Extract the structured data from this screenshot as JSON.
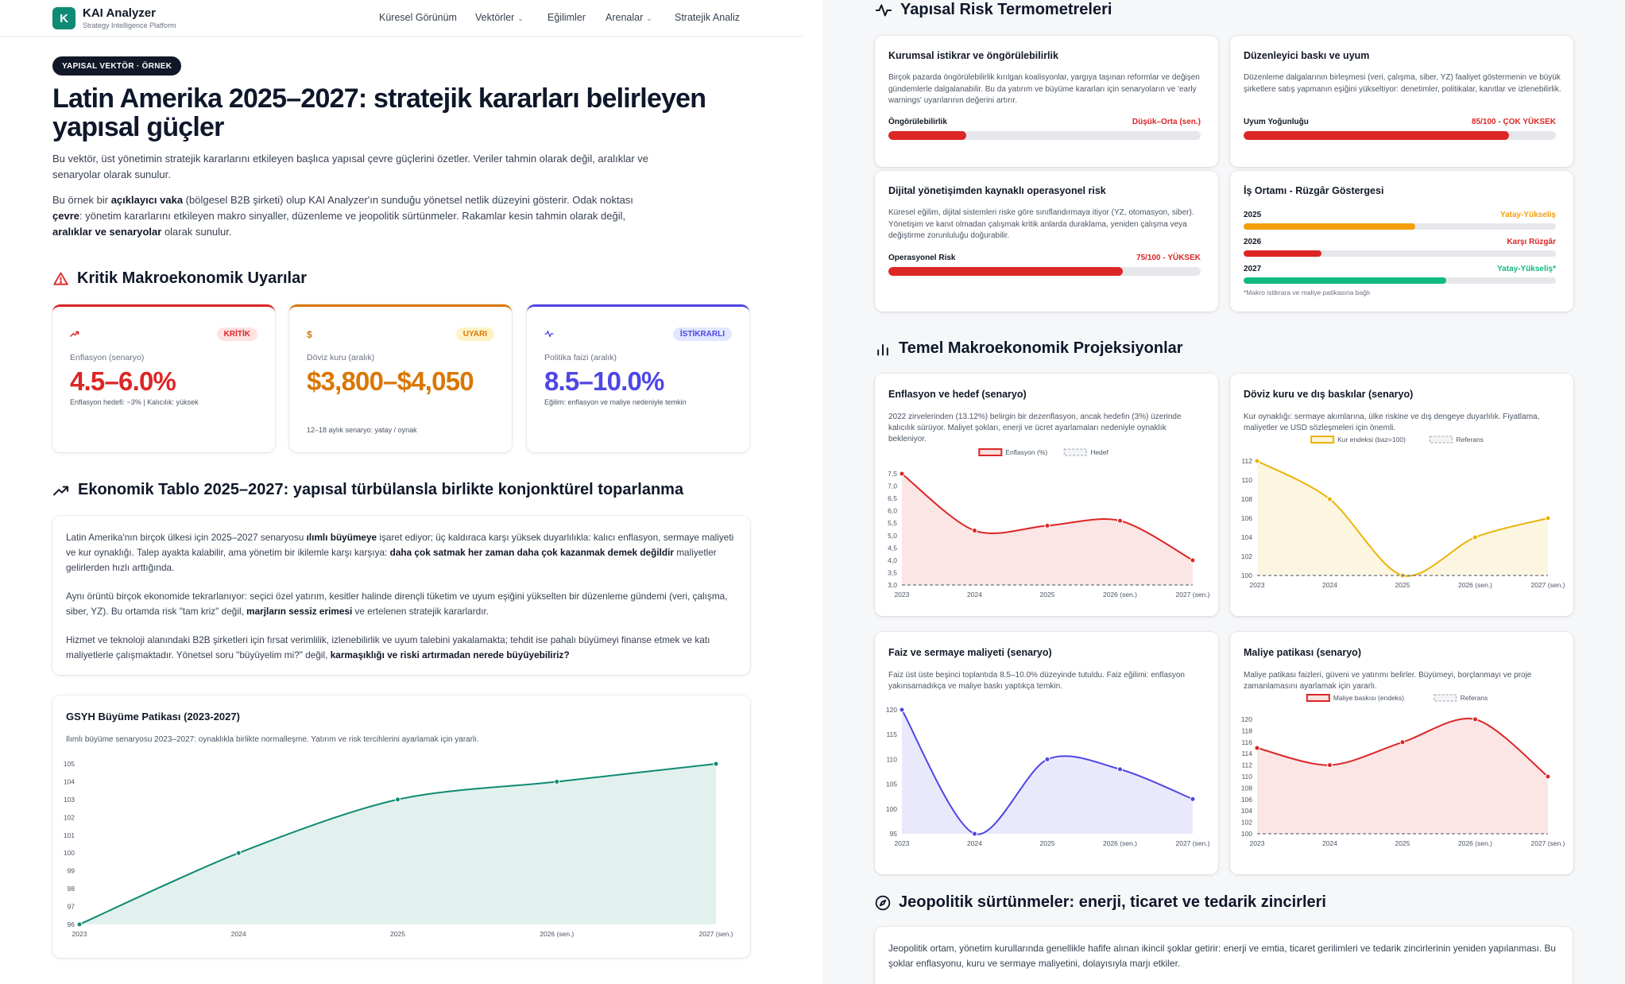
{
  "nav": {
    "logo_letter": "K",
    "brand": "KAI Analyzer",
    "brand_sub": "Strategy Intelligence Platform",
    "items": [
      {
        "label": "Küresel Görünüm",
        "dropdown": false
      },
      {
        "label": "Vektörler",
        "dropdown": true
      },
      {
        "label": "Eğilimler",
        "dropdown": false
      },
      {
        "label": "Arenalar",
        "dropdown": true
      },
      {
        "label": "Stratejik Analiz",
        "dropdown": false
      }
    ]
  },
  "hero": {
    "badge": "YAPISAL VEKTÖR · ÖRNEK",
    "title": "Latin Amerika 2025–2027: stratejik kararları belirleyen yapısal güçler",
    "intro1": "Bu vektör, üst yönetimin stratejik kararlarını etkileyen başlıca yapısal çevre güçlerini özetler. Veriler tahmin olarak değil, aralıklar ve senaryolar olarak sunulur.",
    "intro2_parts": [
      {
        "t": "Bu örnek bir ",
        "b": false
      },
      {
        "t": "açıklayıcı vaka",
        "b": true
      },
      {
        "t": " (bölgesel B2B şirketi) olup KAI Analyzer'ın sunduğu yönetsel netlik düzeyini gösterir. Odak noktası ",
        "b": false
      },
      {
        "t": "çevre",
        "b": true
      },
      {
        "t": ": yönetim kararlarını etkileyen makro sinyaller, düzenleme ve jeopolitik sürtünmeler. Rakamlar kesin tahmin olarak değil, ",
        "b": false
      },
      {
        "t": "aralıklar ve senaryolar",
        "b": true
      },
      {
        "t": " olarak sunulur.",
        "b": false
      }
    ]
  },
  "alerts": {
    "title": "Kritik Makroekonomik Uyarılar",
    "cards": [
      {
        "icon": "trend-up",
        "badge": "KRİTİK",
        "label": "Enflasyon (senaryo)",
        "value": "4.5–6.0%",
        "note": "Enflasyon hedefi: ~3% | Kalıcılık: yüksek",
        "color": "#dc2626",
        "badge_bg": "#fee2e2"
      },
      {
        "icon": "dollar",
        "badge": "UYARI",
        "label": "Döviz kuru (aralık)",
        "value": "$3,800–$4,050",
        "note": "12–18 aylık senaryo: yatay / oynak",
        "color": "#d97706",
        "badge_bg": "#fef3c7"
      },
      {
        "icon": "activity",
        "badge": "İSTİKRARLI",
        "label": "Politika faizi (aralık)",
        "value": "8.5–10.0%",
        "note": "Eğilim: enflasyon ve maliye nedeniyle temkin",
        "color": "#4f46e5",
        "badge_bg": "#e0e7ff"
      }
    ]
  },
  "economy": {
    "title": "Ekonomik Tablo 2025–2027: yapısal türbülansla birlikte konjonktürel toparlanma",
    "paragraphs": [
      [
        {
          "t": "Latin Amerika'nın birçok ülkesi için 2025–2027 senaryosu ",
          "b": false
        },
        {
          "t": "ılımlı büyümeye",
          "b": true
        },
        {
          "t": " işaret ediyor; üç kaldıraca karşı yüksek duyarlılıkla: kalıcı enflasyon, sermaye maliyeti ve kur oynaklığı. Talep ayakta kalabilir, ama yönetim bir ikilemle karşı karşıya: ",
          "b": false
        },
        {
          "t": "daha çok satmak her zaman daha çok kazanmak demek değildir",
          "b": true
        },
        {
          "t": " maliyetler gelirlerden hızlı arttığında.",
          "b": false
        }
      ],
      [
        {
          "t": "Aynı örüntü birçok ekonomide tekrarlanıyor: seçici özel yatırım, kesitler halinde dirençli tüketim ve uyum eşiğini yükselten bir düzenleme gündemi (veri, çalışma, siber, YZ). Bu ortamda risk \"tam kriz\" değil, ",
          "b": false
        },
        {
          "t": "marjların sessiz erimesi",
          "b": true
        },
        {
          "t": " ve ertelenen stratejik kararlardır.",
          "b": false
        }
      ],
      [
        {
          "t": "Hizmet ve teknoloji alanındaki B2B şirketleri için fırsat verimlilik, izlenebilirlik ve uyum talebini yakalamakta; tehdit ise pahalı büyümeyi finanse etmek ve katı maliyetlerle çalışmaktadır. Yönetsel soru \"büyüyelim mi?\" değil, ",
          "b": false
        },
        {
          "t": "karmaşıklığı ve riski artırmadan nerede büyüyebiliriz?",
          "b": true
        }
      ]
    ]
  },
  "gdp": {
    "title": "GSYH Büyüme Patikası (2023-2027)",
    "desc": "Ilımlı büyüme senaryosu 2023–2027: oynaklıkla birlikte normalleşme. Yatırım ve risk tercihlerini ayarlamak için yararlı."
  },
  "thermo": {
    "title": "Yapısal Risk Termometreleri",
    "cards": [
      {
        "title": "Kurumsal istikrar ve öngörülebilirlik",
        "desc": "Birçok pazarda öngörülebilirlik kırılgan koalisyonlar, yargıya taşınan reformlar ve değişen gündemlerle dalgalanabilir. Bu da yatırım ve büyüme kararları için senaryoların ve 'early warnings' uyarılarının değerini artırır.",
        "bar_label": "Öngörülebilirlik",
        "bar_value": "Düşük–Orta (sen.)",
        "level": 0.25,
        "color": "#dc2626"
      },
      {
        "title": "Düzenleyici baskı ve uyum",
        "desc": "Düzenleme dalgalarının birleşmesi (veri, çalışma, siber, YZ) faaliyet göstermenin ve büyük şirketlere satış yapmanın eşiğini yükseltiyor: denetimler, politikalar, kanıtlar ve izlenebilirlik.",
        "bar_label": "Uyum Yoğunluğu",
        "bar_value": "85/100 - ÇOK YÜKSEK",
        "level": 0.85,
        "color": "#dc2626"
      },
      {
        "title": "Dijital yönetişimden kaynaklı operasyonel risk",
        "desc": "Küresel eğilim, dijital sistemleri riske göre sınıflandırmaya itiyor (YZ, otomasyon, siber). Yönetişim ve kanıt olmadan çalışmak kritik anlarda duraklama, yeniden çalışma veya değiştirme zorunluluğu doğurabilir.",
        "bar_label": "Operasyonel Risk",
        "bar_value": "75/100 - YÜKSEK",
        "level": 0.75,
        "color": "#dc2626"
      }
    ],
    "wind": {
      "title": "İş Ortamı - Rüzgâr Göstergesi",
      "rows": [
        {
          "year": "2025",
          "value": "Yatay-Yükseliş",
          "level": 0.55,
          "color": "#f59e0b"
        },
        {
          "year": "2026",
          "value": "Karşı Rüzgâr",
          "level": 0.25,
          "color": "#dc2626"
        },
        {
          "year": "2027",
          "value": "Yatay-Yükseliş*",
          "level": 0.65,
          "color": "#10b981"
        }
      ],
      "note": "*Makro istikrara ve maliye patikasına bağlı"
    }
  },
  "projections": {
    "title": "Temel Makroekonomik Projeksiyonlar",
    "cards": [
      {
        "title": "Enflasyon ve hedef (senaryo)",
        "desc": "2022 zirvelerinden (13.12%) belirgin bir dezenflasyon, ancak hedefin (3%) üzerinde kalıcılık sürüyor. Maliyet şokları, enerji ve ücret ayarlamaları nedeniyle oynaklık bekleniyor."
      },
      {
        "title": "Döviz kuru ve dış baskılar (senaryo)",
        "desc": "Kur oynaklığı: sermaye akımlarına, ülke riskine ve dış dengeye duyarlılık. Fiyatlama, maliyetler ve USD sözleşmeleri için önemli."
      },
      {
        "title": "Faiz ve sermaye maliyeti (senaryo)",
        "desc": "Faiz üst üste beşinci toplantıda 8.5–10.0% düzeyinde tutuldu. Faiz eğilimi: enflasyon yakınsamadıkça ve maliye baskı yaptıkça temkin."
      },
      {
        "title": "Maliye patikası (senaryo)",
        "desc": "Maliye patikası faizleri, güveni ve yatırımı belirler. Büyümeyi, borçlanmayı ve proje zamanlamasını ayarlamak için yararlı."
      }
    ]
  },
  "geo": {
    "title": "Jeopolitik sürtünmeler: enerji, ticaret ve tedarik zincirleri",
    "text": "Jeopolitik ortam, yönetim kurullarında genellikle hafife alınan ikincil şoklar getirir: enerji ve emtia, ticaret gerilimleri ve tedarik zincirlerinin yeniden yapılanması. Bu şoklar enflasyonu, kuru ve sermaye maliyetini, dolayısıyla marjı etkiler."
  },
  "chart_data": [
    {
      "type": "area",
      "title": "GSYH Büyüme Patikası (2023-2027)",
      "categories": [
        "2023",
        "2024",
        "2025",
        "2026 (sen.)",
        "2027 (sen.)"
      ],
      "values": [
        96,
        100,
        103,
        104,
        105
      ],
      "ylim": [
        96,
        105
      ],
      "yticks": [
        96,
        97,
        98,
        99,
        100,
        101,
        102,
        103,
        104,
        105
      ],
      "color": "#0f8a74",
      "grid": false,
      "legend": false
    },
    {
      "type": "line",
      "title": "Enflasyon ve hedef (senaryo)",
      "categories": [
        "2023",
        "2024",
        "2025",
        "2026 (sen.)",
        "2027 (sen.)"
      ],
      "series": [
        {
          "name": "Enflasyon (%)",
          "values": [
            7.5,
            5.2,
            5.4,
            5.6,
            4.0
          ],
          "color": "#dc2626"
        },
        {
          "name": "Hedef",
          "values": [
            3.0,
            3.0,
            3.0,
            3.0,
            3.0
          ],
          "color": "#9ca3af",
          "dashed": true
        }
      ],
      "ylim": [
        3.0,
        7.5
      ],
      "yticks": [
        "3,0",
        "3,5",
        "4,0",
        "4,5",
        "5,0",
        "5,5",
        "6,0",
        "6,5",
        "7,0",
        "7,5"
      ],
      "legend": "top"
    },
    {
      "type": "line",
      "title": "Döviz kuru ve dış baskılar (senaryo)",
      "categories": [
        "2023",
        "2024",
        "2025",
        "2026 (sen.)",
        "2027 (sen.)"
      ],
      "series": [
        {
          "name": "Kur endeksi (baz=100)",
          "values": [
            112,
            108,
            100,
            104,
            106
          ],
          "color": "#eab308"
        },
        {
          "name": "Referans",
          "values": [
            100,
            100,
            100,
            100,
            100
          ],
          "color": "#9ca3af",
          "dashed": true
        }
      ],
      "ylim": [
        100,
        112
      ],
      "yticks": [
        "100",
        "102",
        "104",
        "106",
        "108",
        "110",
        "112"
      ],
      "legend": "top"
    },
    {
      "type": "line",
      "title": "Faiz ve sermaye maliyeti (senaryo)",
      "categories": [
        "2023",
        "2024",
        "2025",
        "2026 (sen.)",
        "2027 (sen.)"
      ],
      "series": [
        {
          "name": "",
          "values": [
            120,
            95,
            110,
            108,
            102
          ],
          "color": "#4f46e5"
        }
      ],
      "ylim": [
        95,
        120
      ],
      "yticks": [
        "95",
        "100",
        "105",
        "110",
        "115",
        "120"
      ],
      "legend": false
    },
    {
      "type": "line",
      "title": "Maliye patikası (senaryo)",
      "categories": [
        "2023",
        "2024",
        "2025",
        "2026 (sen.)",
        "2027 (sen.)"
      ],
      "series": [
        {
          "name": "Maliye baskısı (endeks)",
          "values": [
            115,
            112,
            116,
            120,
            110
          ],
          "color": "#dc2626"
        },
        {
          "name": "Referans",
          "values": [
            100,
            100,
            100,
            100,
            100
          ],
          "color": "#9ca3af",
          "dashed": true
        }
      ],
      "ylim": [
        100,
        120
      ],
      "yticks": [
        "100",
        "102",
        "104",
        "106",
        "108",
        "110",
        "112",
        "114",
        "116",
        "118",
        "120"
      ],
      "legend": "top"
    }
  ]
}
